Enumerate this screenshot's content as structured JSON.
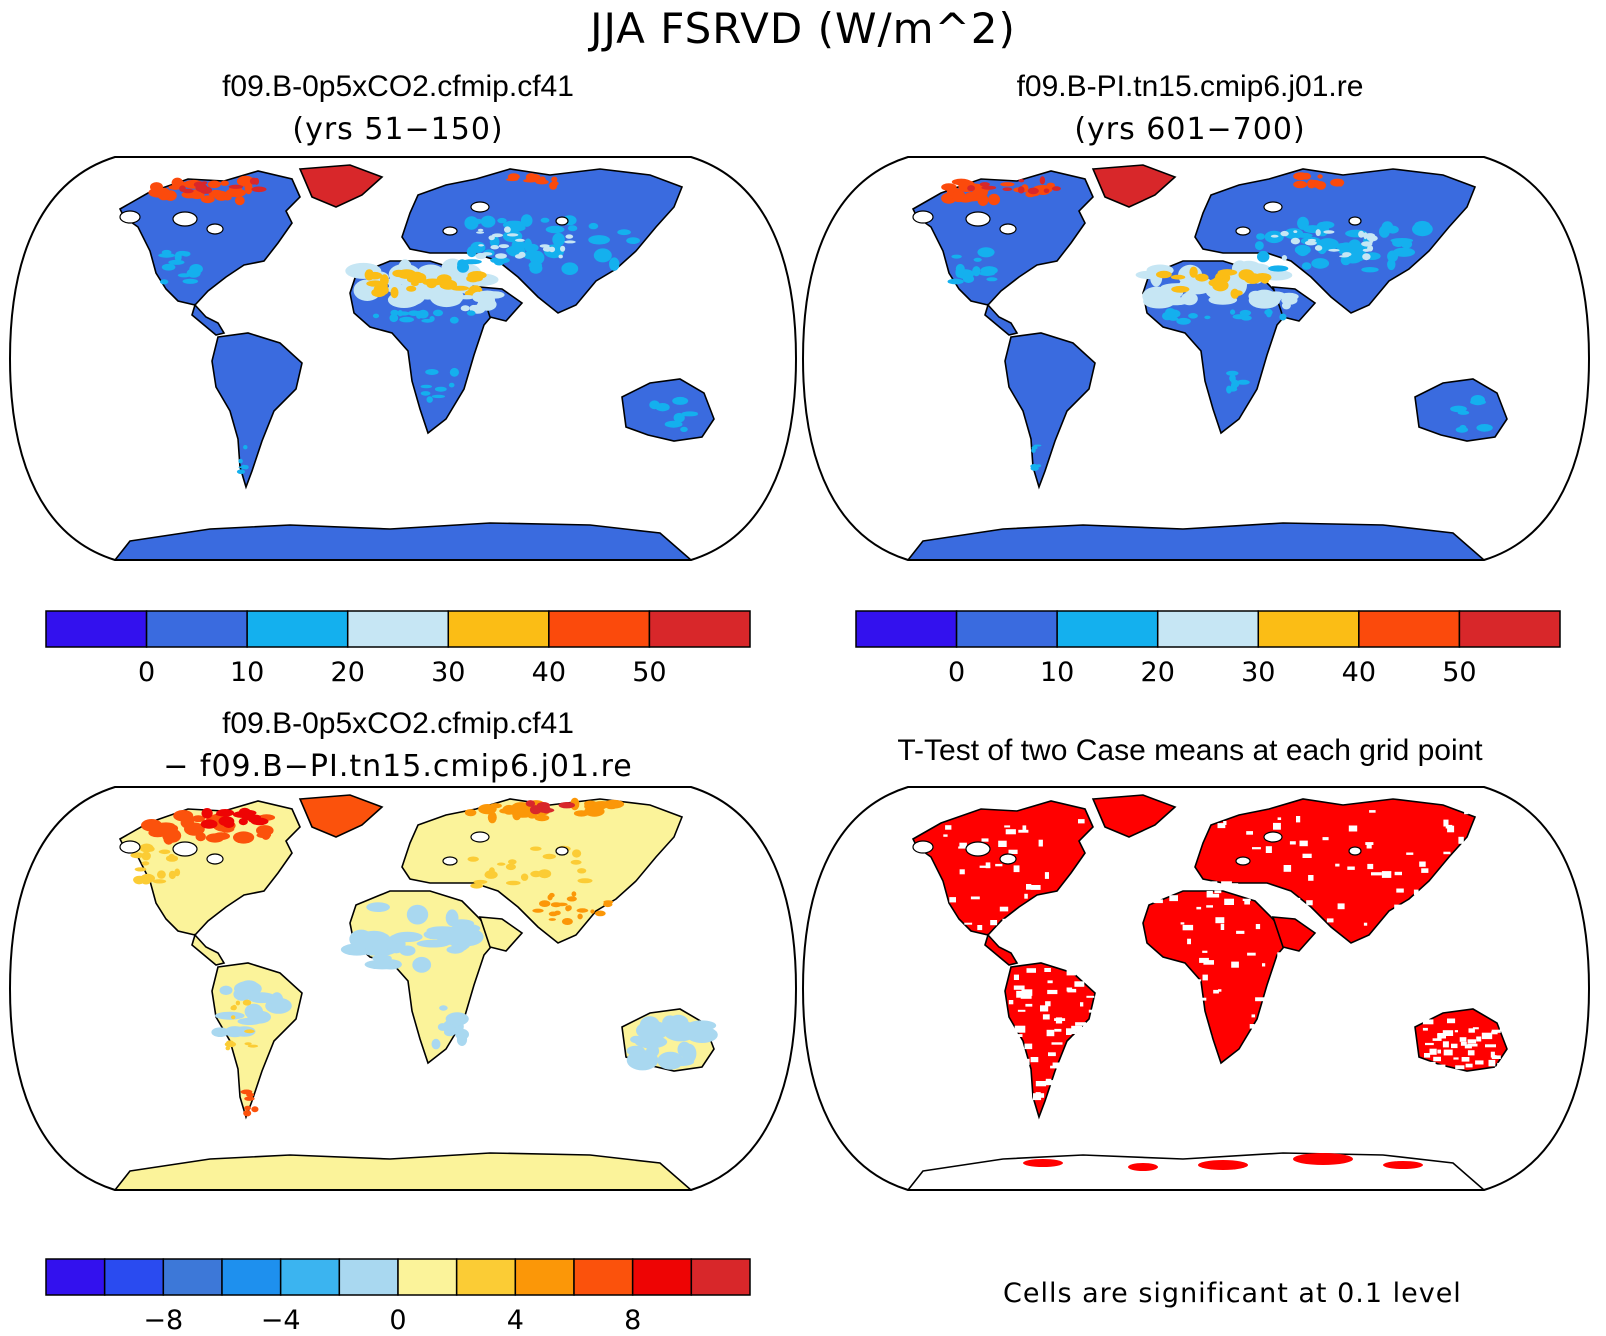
{
  "title": "JJA FSRVD (W/m^2)",
  "panels": [
    {
      "id": "case1",
      "title": "f09.B-0p5xCO2.cfmip.cf41",
      "subtitle": "(yrs 51−150)"
    },
    {
      "id": "case2",
      "title": "f09.B-PI.tn15.cmip6.j01.re",
      "subtitle": "(yrs 601−700)"
    },
    {
      "id": "diff",
      "title": "f09.B-0p5xCO2.cfmip.cf41",
      "subtitle": "− f09.B−PI.tn15.cmip6.j01.re"
    },
    {
      "id": "ttest",
      "title": "T-Test of two Case means at each grid point",
      "subtitle": ""
    }
  ],
  "colorbars": {
    "absolute": {
      "colors": [
        "#3311ee",
        "#3a6bdf",
        "#14b0ee",
        "#c6e6f4",
        "#fbbd15",
        "#fb4a0c",
        "#d8272a"
      ],
      "tick_labels": [
        "0",
        "10",
        "20",
        "30",
        "40",
        "50"
      ]
    },
    "difference": {
      "colors": [
        "#3311ee",
        "#2a4bf0",
        "#3d78d8",
        "#1e90ee",
        "#3bb4f0",
        "#a9d8f0",
        "#fbf39a",
        "#fbcc35",
        "#fb9708",
        "#fb520c",
        "#ee0404",
        "#d8272a"
      ],
      "tick_labels": [
        "−8",
        "−4",
        "0",
        "4",
        "8"
      ]
    }
  },
  "map_colors": {
    "ocean": "#ffffff",
    "land_case": "#3a6bdf",
    "land_diff": "#fbf39a",
    "significant": "#ff0000"
  },
  "footnote": "Cells are significant at 0.1 level"
}
